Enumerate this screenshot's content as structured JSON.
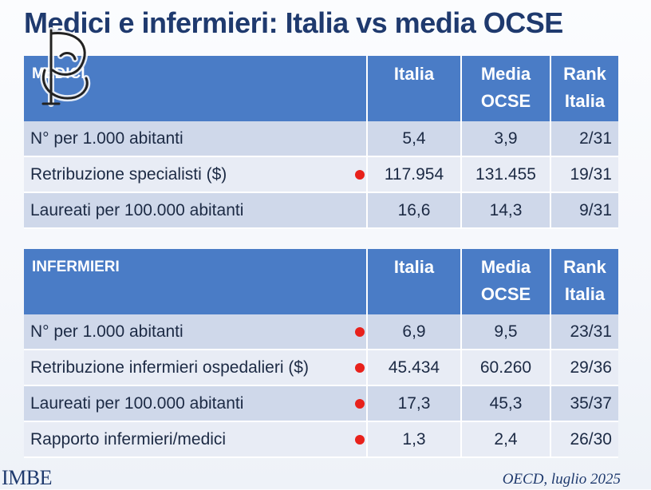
{
  "slide": {
    "title": "Medici e infermieri: Italia vs media OCSE",
    "footer_left": "IMBE",
    "footer_right": "OECD, luglio 2025"
  },
  "logo": {
    "icon": "emblem-logo"
  },
  "colors": {
    "header_bg": "#4a7cc6",
    "row_dark": "#cfd8ea",
    "row_light": "#e8ecf5",
    "title": "#1f3a6e",
    "bullet": "#e8211b"
  },
  "medici": {
    "section_label": "MEDICI",
    "columns": {
      "italia": "Italia",
      "media_line1": "Media",
      "media_line2": "OCSE",
      "rank_line1": "Rank",
      "rank_line2": "Italia"
    },
    "rows": [
      {
        "label": "N° per 1.000 abitanti",
        "italia": "5,4",
        "ocse": "3,9",
        "rank": "2/31",
        "bullet": false
      },
      {
        "label": "Retribuzione specialisti ($)",
        "italia": "117.954",
        "ocse": "131.455",
        "rank": "19/31",
        "bullet": true
      },
      {
        "label": "Laureati per 100.000 abitanti",
        "italia": "16,6",
        "ocse": "14,3",
        "rank": "9/31",
        "bullet": false
      }
    ]
  },
  "infermieri": {
    "section_label": "INFERMIERI",
    "columns": {
      "italia": "Italia",
      "media_line1": "Media",
      "media_line2": "OCSE",
      "rank_line1": "Rank",
      "rank_line2": "Italia"
    },
    "rows": [
      {
        "label": "N° per 1.000 abitanti",
        "italia": "6,9",
        "ocse": "9,5",
        "rank": "23/31",
        "bullet": true
      },
      {
        "label": "Retribuzione infermieri ospedalieri ($)",
        "italia": "45.434",
        "ocse": "60.260",
        "rank": "29/36",
        "bullet": true
      },
      {
        "label": "Laureati per 100.000 abitanti",
        "italia": "17,3",
        "ocse": "45,3",
        "rank": "35/37",
        "bullet": true
      },
      {
        "label": "Rapporto infermieri/medici",
        "italia": "1,3",
        "ocse": "2,4",
        "rank": "26/30",
        "bullet": true
      }
    ]
  }
}
